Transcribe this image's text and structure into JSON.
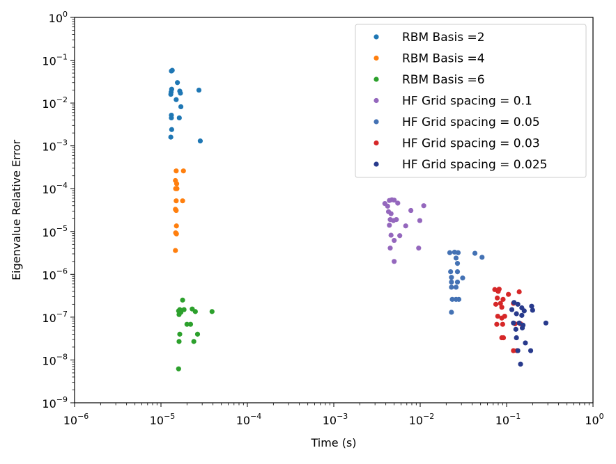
{
  "chart_data": {
    "type": "scatter",
    "xlabel": "Time (s)",
    "ylabel": "Eigenvalue Relative Error",
    "xscale": "log",
    "yscale": "log",
    "xlim": [
      1e-06,
      1
    ],
    "ylim": [
      1e-09,
      1
    ],
    "x_ticks": [
      {
        "value": 1e-06,
        "base": "10",
        "exp": "−6"
      },
      {
        "value": 1e-05,
        "base": "10",
        "exp": "−5"
      },
      {
        "value": 0.0001,
        "base": "10",
        "exp": "−4"
      },
      {
        "value": 0.001,
        "base": "10",
        "exp": "−3"
      },
      {
        "value": 0.01,
        "base": "10",
        "exp": "−2"
      },
      {
        "value": 0.1,
        "base": "10",
        "exp": "−1"
      },
      {
        "value": 1,
        "base": "10",
        "exp": "0"
      }
    ],
    "y_ticks": [
      {
        "value": 1e-09,
        "base": "10",
        "exp": "−9"
      },
      {
        "value": 1e-08,
        "base": "10",
        "exp": "−8"
      },
      {
        "value": 1e-07,
        "base": "10",
        "exp": "−7"
      },
      {
        "value": 1e-06,
        "base": "10",
        "exp": "−6"
      },
      {
        "value": 1e-05,
        "base": "10",
        "exp": "−5"
      },
      {
        "value": 0.0001,
        "base": "10",
        "exp": "−4"
      },
      {
        "value": 0.001,
        "base": "10",
        "exp": "−3"
      },
      {
        "value": 0.01,
        "base": "10",
        "exp": "−2"
      },
      {
        "value": 0.1,
        "base": "10",
        "exp": "−1"
      },
      {
        "value": 1,
        "base": "10",
        "exp": "0"
      }
    ],
    "grid": false,
    "legend_position": "top-right",
    "series": [
      {
        "name": "RBM Basis =2",
        "color": "#1f77b4",
        "points": [
          [
            1.35e-05,
            0.058
          ],
          [
            1.32e-05,
            0.056
          ],
          [
            1.55e-05,
            0.03
          ],
          [
            1.33e-05,
            0.021
          ],
          [
            1.31e-05,
            0.018
          ],
          [
            1.65e-05,
            0.019
          ],
          [
            1.68e-05,
            0.017
          ],
          [
            1.3e-05,
            0.016
          ],
          [
            1.5e-05,
            0.012
          ],
          [
            1.7e-05,
            0.0082
          ],
          [
            1.32e-05,
            0.0052
          ],
          [
            1.32e-05,
            0.0045
          ],
          [
            1.63e-05,
            0.0045
          ],
          [
            1.33e-05,
            0.0024
          ],
          [
            1.3e-05,
            0.0016
          ],
          [
            2.75e-05,
            0.02
          ],
          [
            2.85e-05,
            0.0013
          ]
        ]
      },
      {
        "name": "RBM Basis =4",
        "color": "#ff7f0e",
        "points": [
          [
            1.5e-05,
            0.00026
          ],
          [
            1.82e-05,
            0.00026
          ],
          [
            1.47e-05,
            0.000155
          ],
          [
            1.52e-05,
            0.00013
          ],
          [
            1.48e-05,
            0.0001
          ],
          [
            1.53e-05,
            0.0001
          ],
          [
            1.5e-05,
            5.2e-05
          ],
          [
            1.78e-05,
            5.2e-05
          ],
          [
            1.47e-05,
            3.3e-05
          ],
          [
            1.5e-05,
            3.1e-05
          ],
          [
            1.51e-05,
            1.35e-05
          ],
          [
            1.48e-05,
            9.3e-06
          ],
          [
            1.51e-05,
            8.8e-06
          ],
          [
            1.47e-05,
            3.6e-06
          ]
        ]
      },
      {
        "name": "RBM Basis =6",
        "color": "#2ca02c",
        "points": [
          [
            1.78e-05,
            2.5e-07
          ],
          [
            1.65e-05,
            1.5e-07
          ],
          [
            1.85e-05,
            1.5e-07
          ],
          [
            2.3e-05,
            1.55e-07
          ],
          [
            2.5e-05,
            1.35e-07
          ],
          [
            1.6e-05,
            1.4e-07
          ],
          [
            1.7e-05,
            1.3e-07
          ],
          [
            1.62e-05,
            1.15e-07
          ],
          [
            3.9e-05,
            1.35e-07
          ],
          [
            2e-05,
            6.8e-08
          ],
          [
            2.2e-05,
            6.8e-08
          ],
          [
            1.65e-05,
            4e-08
          ],
          [
            2.65e-05,
            4e-08
          ],
          [
            1.62e-05,
            2.7e-08
          ],
          [
            2.4e-05,
            2.7e-08
          ],
          [
            1.6e-05,
            6.2e-09
          ]
        ]
      },
      {
        "name": "HF Grid spacing = 0.1",
        "color": "#9467bd",
        "points": [
          [
            0.0039,
            4.5e-05
          ],
          [
            0.0042,
            3.9e-05
          ],
          [
            0.0044,
            5.3e-05
          ],
          [
            0.0047,
            5.5e-05
          ],
          [
            0.005,
            5.4e-05
          ],
          [
            0.0055,
            4.6e-05
          ],
          [
            0.0043,
            2.9e-05
          ],
          [
            0.0046,
            2.6e-05
          ],
          [
            0.0078,
            3.1e-05
          ],
          [
            0.011,
            4e-05
          ],
          [
            0.0045,
            1.9e-05
          ],
          [
            0.0049,
            1.8e-05
          ],
          [
            0.0053,
            1.9e-05
          ],
          [
            0.0044,
            1.4e-05
          ],
          [
            0.0068,
            1.35e-05
          ],
          [
            0.0099,
            1.8e-05
          ],
          [
            0.0046,
            8.2e-06
          ],
          [
            0.0058,
            8e-06
          ],
          [
            0.005,
            6.2e-06
          ],
          [
            0.0045,
            4.1e-06
          ],
          [
            0.0096,
            4.1e-06
          ],
          [
            0.005,
            2e-06
          ]
        ]
      },
      {
        "name": "HF Grid spacing = 0.05",
        "color": "#4472b4",
        "points": [
          [
            0.022,
            3.2e-06
          ],
          [
            0.025,
            3.3e-06
          ],
          [
            0.0275,
            3.2e-06
          ],
          [
            0.026,
            2.4e-06
          ],
          [
            0.027,
            1.8e-06
          ],
          [
            0.043,
            3.1e-06
          ],
          [
            0.052,
            2.5e-06
          ],
          [
            0.0225,
            1.15e-06
          ],
          [
            0.027,
            1.15e-06
          ],
          [
            0.023,
            8.5e-07
          ],
          [
            0.031,
            8.2e-07
          ],
          [
            0.023,
            6.6e-07
          ],
          [
            0.027,
            6.6e-07
          ],
          [
            0.023,
            5e-07
          ],
          [
            0.026,
            5e-07
          ],
          [
            0.0235,
            2.6e-07
          ],
          [
            0.026,
            2.6e-07
          ],
          [
            0.028,
            2.6e-07
          ],
          [
            0.023,
            1.3e-07
          ]
        ]
      },
      {
        "name": "HF Grid spacing = 0.03",
        "color": "#d62728",
        "points": [
          [
            0.073,
            4.4e-07
          ],
          [
            0.082,
            4.5e-07
          ],
          [
            0.08,
            4e-07
          ],
          [
            0.105,
            3.4e-07
          ],
          [
            0.14,
            3.9e-07
          ],
          [
            0.078,
            2.8e-07
          ],
          [
            0.091,
            2.6e-07
          ],
          [
            0.075,
            2e-07
          ],
          [
            0.085,
            2.1e-07
          ],
          [
            0.12,
            2.1e-07
          ],
          [
            0.088,
            1.7e-07
          ],
          [
            0.079,
            1.05e-07
          ],
          [
            0.095,
            1.05e-07
          ],
          [
            0.088,
            9.5e-08
          ],
          [
            0.077,
            6.8e-08
          ],
          [
            0.09,
            6.8e-08
          ],
          [
            0.125,
            7e-08
          ],
          [
            0.145,
            7e-08
          ],
          [
            0.088,
            3.3e-08
          ],
          [
            0.092,
            3.3e-08
          ],
          [
            0.12,
            1.65e-08
          ],
          [
            0.132,
            1.65e-08
          ]
        ]
      },
      {
        "name": "HF Grid spacing = 0.025",
        "color": "#283a8c",
        "points": [
          [
            0.122,
            2.2e-07
          ],
          [
            0.135,
            2e-07
          ],
          [
            0.15,
            1.65e-07
          ],
          [
            0.195,
            1.8e-07
          ],
          [
            0.115,
            1.5e-07
          ],
          [
            0.16,
            1.4e-07
          ],
          [
            0.2,
            1.45e-07
          ],
          [
            0.13,
            1.2e-07
          ],
          [
            0.15,
            1.1e-07
          ],
          [
            0.12,
            7.3e-08
          ],
          [
            0.14,
            7.3e-08
          ],
          [
            0.155,
            6.5e-08
          ],
          [
            0.285,
            7.3e-08
          ],
          [
            0.128,
            5.2e-08
          ],
          [
            0.152,
            5.6e-08
          ],
          [
            0.13,
            3.3e-08
          ],
          [
            0.165,
            2.5e-08
          ],
          [
            0.135,
            1.65e-08
          ],
          [
            0.19,
            1.65e-08
          ],
          [
            0.145,
            8e-09
          ]
        ]
      }
    ]
  }
}
